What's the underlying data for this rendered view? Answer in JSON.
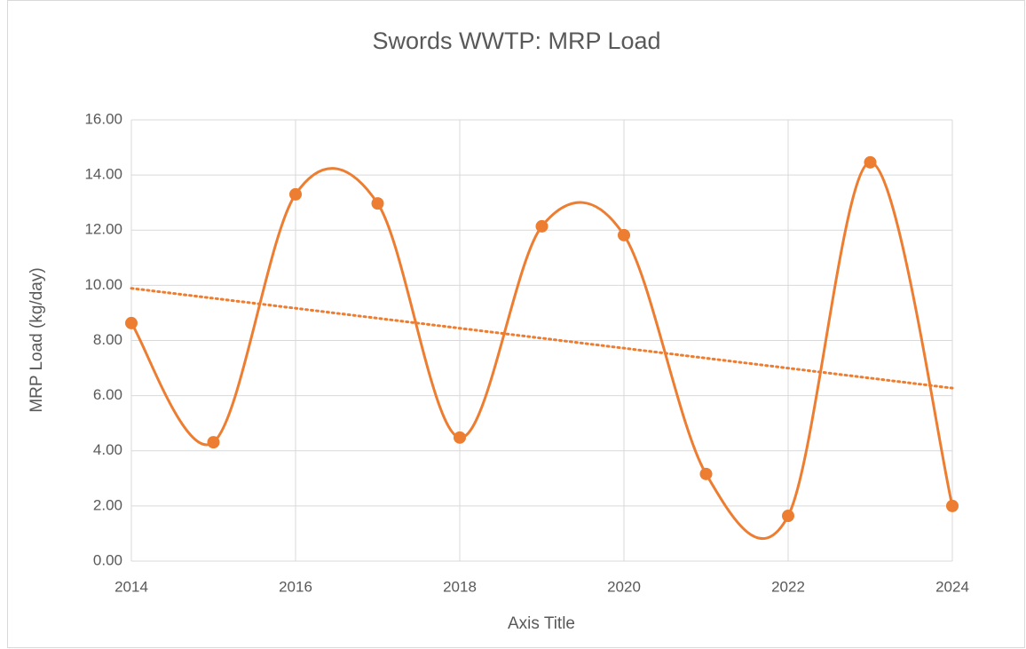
{
  "chart_data": {
    "type": "scatter",
    "title": "Swords WWTP: MRP Load",
    "x_label": "Axis Title",
    "y_label": "MRP Load (kg/day)",
    "x": [
      2014,
      2015,
      2016,
      2017,
      2018,
      2019,
      2020,
      2021,
      2022,
      2023,
      2024
    ],
    "series": [
      {
        "name": "MRP Load",
        "color": "#ed7d31",
        "values": [
          8.63,
          4.31,
          13.3,
          12.97,
          4.48,
          12.14,
          11.82,
          3.16,
          1.64,
          14.46,
          2.0
        ]
      }
    ],
    "line": "smooth",
    "trendline": "linear",
    "xlim": [
      2014,
      2024
    ],
    "xticks": [
      2014,
      2016,
      2018,
      2020,
      2022,
      2024
    ],
    "ylim": [
      0,
      16
    ],
    "yticks": [
      {
        "value": 0,
        "label": "0.00"
      },
      {
        "value": 2,
        "label": "2.00"
      },
      {
        "value": 4,
        "label": "4.00"
      },
      {
        "value": 6,
        "label": "6.00"
      },
      {
        "value": 8,
        "label": "8.00"
      },
      {
        "value": 10,
        "label": "10.00"
      },
      {
        "value": 12,
        "label": "12.00"
      },
      {
        "value": 14,
        "label": "14.00"
      },
      {
        "value": 16,
        "label": "16.00"
      }
    ],
    "grid": true
  }
}
